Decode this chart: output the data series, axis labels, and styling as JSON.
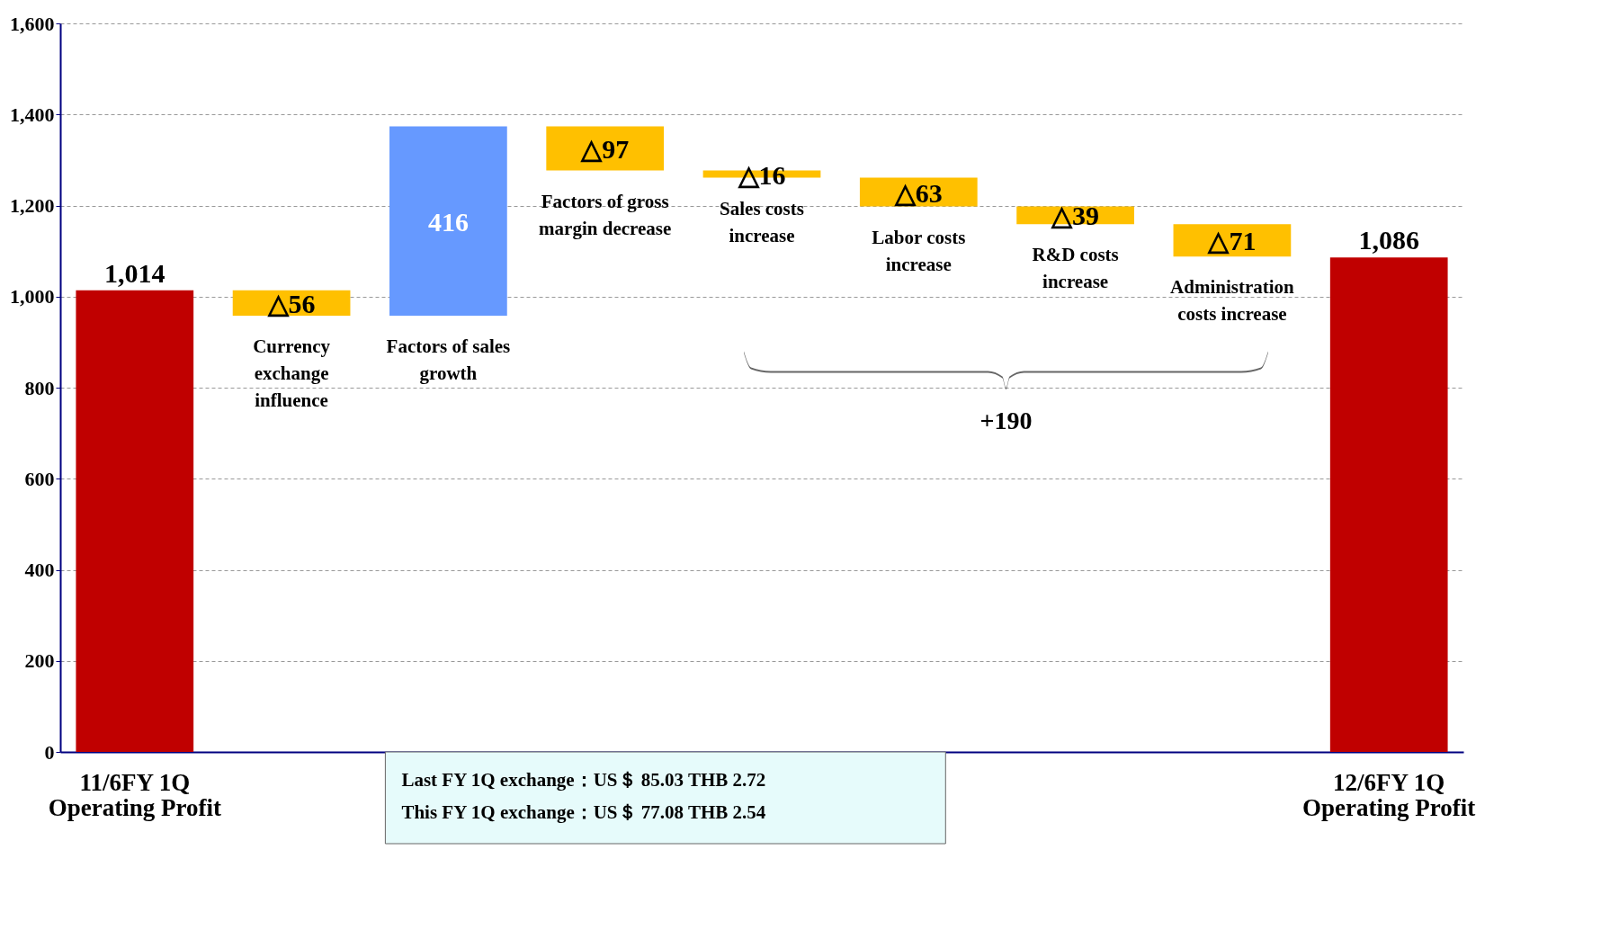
{
  "chart_data": {
    "type": "bar",
    "categories": [
      "11/6FY 1Q Operating Profit",
      "Currency exchange influence",
      "Factors of sales growth",
      "Factors of gross margin decrease",
      "Sales costs increase",
      "Labor costs increase",
      "R&D costs increase",
      "Administration costs increase",
      "12/6FY 1Q Operating Profit"
    ],
    "values": [
      1014,
      56,
      416,
      97,
      16,
      63,
      39,
      71,
      1086
    ],
    "base": [
      0,
      958,
      958,
      1277,
      1261,
      1198,
      1159,
      1088,
      0
    ],
    "colors": [
      "#c00000",
      "#ffc000",
      "#6699ff",
      "#ffc000",
      "#ffc000",
      "#ffc000",
      "#ffc000",
      "#ffc000",
      "#c00000"
    ],
    "value_labels": [
      "1,014",
      "△56",
      "416",
      "△97",
      "△16",
      "△63",
      "△39",
      "△71",
      "1,086"
    ],
    "ylim": [
      0,
      1600
    ],
    "yticks": [
      0,
      200,
      400,
      600,
      800,
      {
        "value": 1000,
        "label": "1,000"
      },
      {
        "value": 1200,
        "label": "1,200"
      },
      {
        "value": 1400,
        "label": "1,400"
      },
      {
        "value": 1600,
        "label": "1,600"
      }
    ],
    "grid": "y",
    "annotations": [
      "+190",
      "Last FY 1Q exchange：US＄ 85.03   THB 2.72",
      "This FY 1Q exchange：US＄ 77.08   THB 2.54"
    ]
  }
}
